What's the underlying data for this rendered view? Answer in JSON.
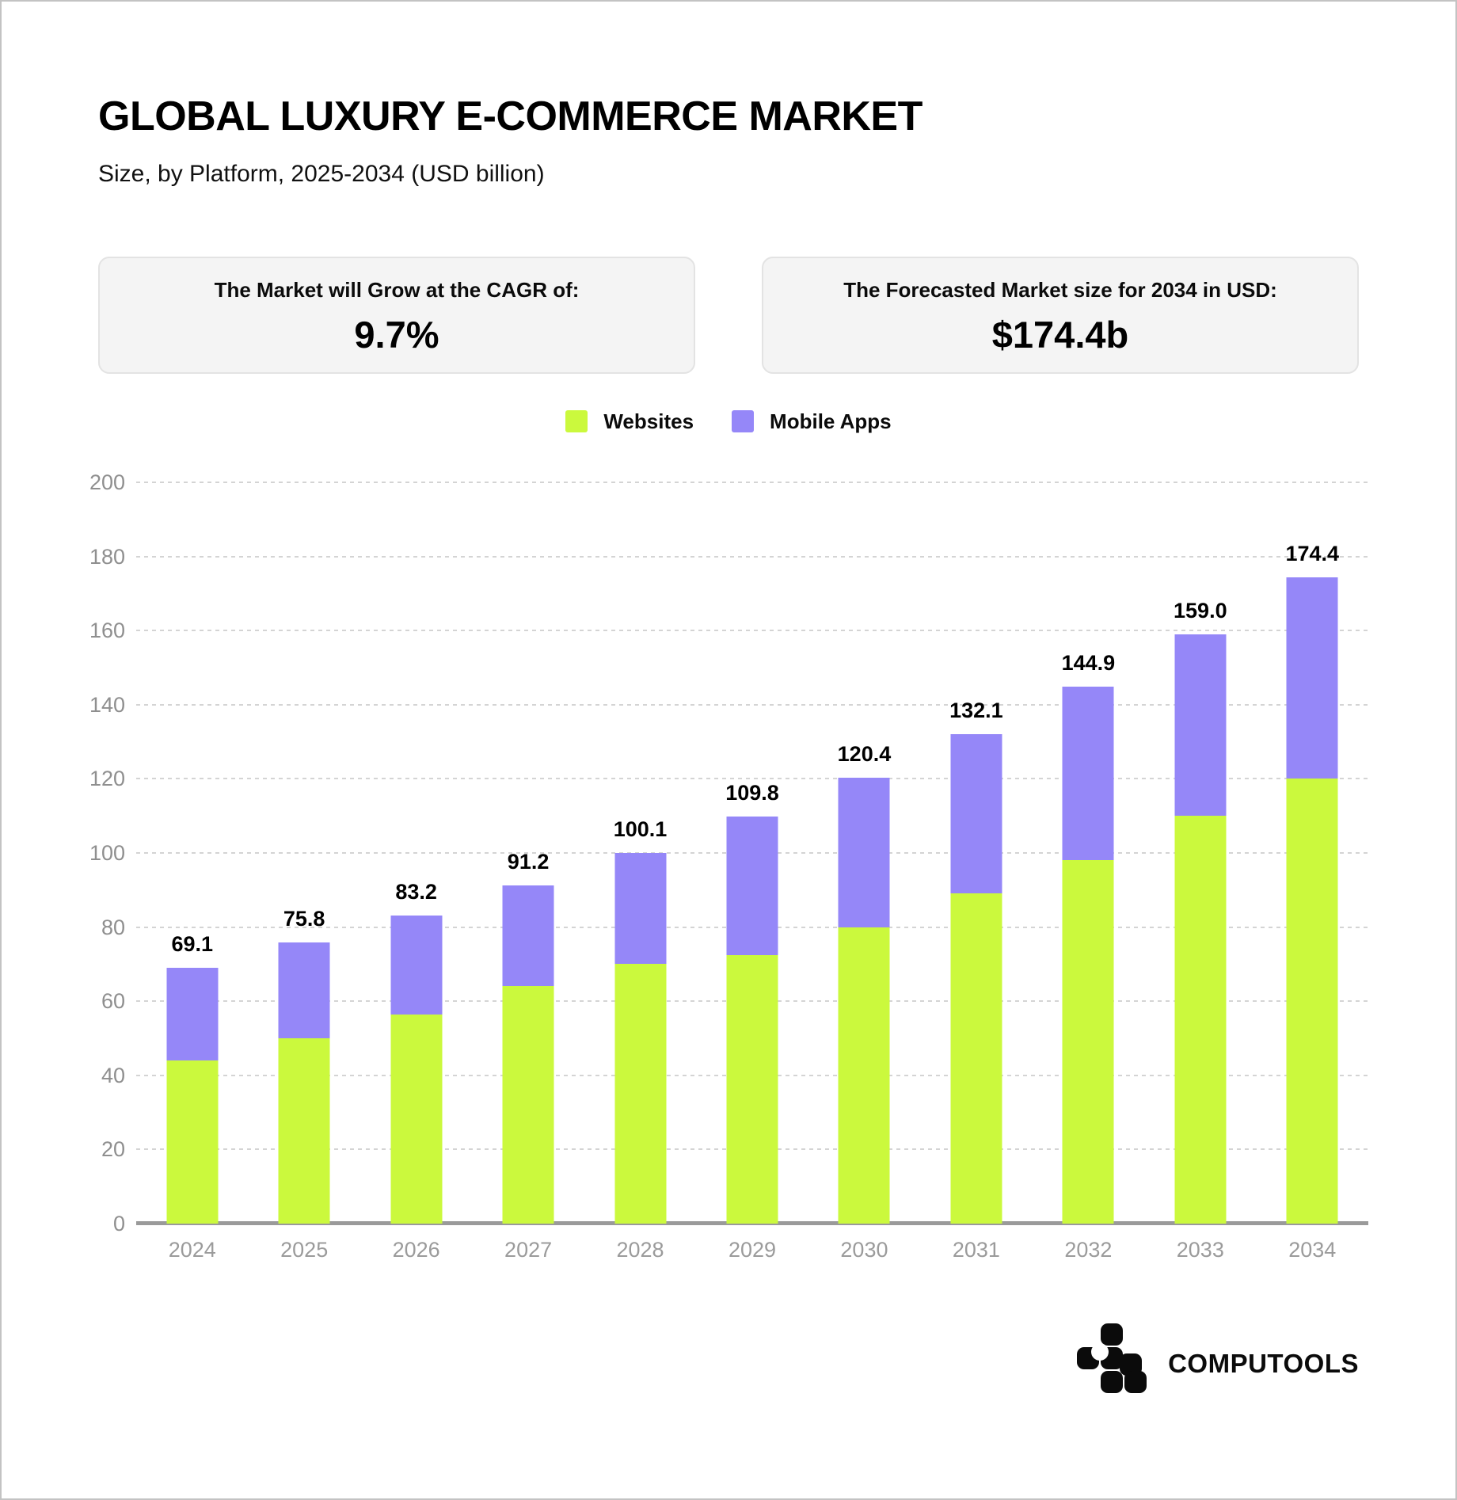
{
  "header": {
    "title": "GLOBAL LUXURY E-COMMERCE MARKET",
    "subtitle": "Size, by Platform, 2025-2034 (USD billion)"
  },
  "stats": [
    {
      "label": "The Market will Grow at the CAGR of:",
      "value": "9.7%"
    },
    {
      "label": "The Forecasted Market size for 2034 in USD:",
      "value": "$174.4b"
    }
  ],
  "legend": [
    {
      "label": "Websites",
      "color": "#cbf93d"
    },
    {
      "label": "Mobile Apps",
      "color": "#9587f8"
    }
  ],
  "chart_data": {
    "type": "bar",
    "stacked": true,
    "title": "Global luxury e-commerce market size by platform, USD billion",
    "categories": [
      "2024",
      "2025",
      "2026",
      "2027",
      "2028",
      "2029",
      "2030",
      "2031",
      "2032",
      "2033",
      "2034"
    ],
    "series": [
      {
        "name": "Websites",
        "color": "#cbf93d",
        "values": [
          44.0,
          50.0,
          56.5,
          64.0,
          70.0,
          72.5,
          80.0,
          89.0,
          98.0,
          110.0,
          120.0
        ]
      },
      {
        "name": "Mobile Apps",
        "color": "#9587f8",
        "values": [
          25.1,
          25.8,
          26.7,
          27.2,
          30.1,
          37.3,
          40.4,
          43.1,
          46.9,
          49.0,
          54.4
        ]
      }
    ],
    "totals": [
      69.1,
      75.8,
      83.2,
      91.2,
      100.1,
      109.8,
      120.4,
      132.1,
      144.9,
      159.0,
      174.4
    ],
    "ylim": [
      0,
      200
    ],
    "yticks": [
      0,
      20,
      40,
      60,
      80,
      100,
      120,
      140,
      160,
      180,
      200
    ],
    "grid": "horizontal-dotted",
    "legend_position": "top-center",
    "xlabel": "",
    "ylabel": ""
  },
  "footer": {
    "brand": "COMPUTOOLS"
  }
}
